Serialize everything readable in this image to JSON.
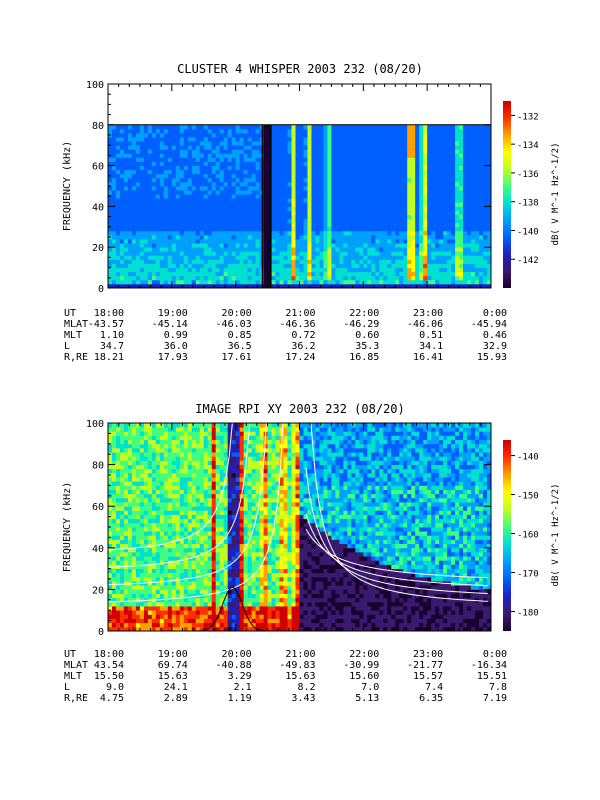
{
  "colors": {
    "text": "#000000",
    "curve_white": "#ffffff",
    "curve_black": "#000000",
    "colormap": [
      "#1a0030",
      "#3a1a6e",
      "#2020c0",
      "#0060ff",
      "#00a0ff",
      "#00e0d0",
      "#40ff80",
      "#c0ff20",
      "#ffff00",
      "#ffa000",
      "#ff3000",
      "#d00000"
    ]
  },
  "chart_data": [
    {
      "type": "heatmap",
      "title": "CLUSTER 4 WHISPER 2003 232 (08/20)",
      "ylabel": "FREQUENCY (kHz)",
      "ylim": [
        0,
        100
      ],
      "yticks": [
        "0",
        "20",
        "40",
        "60",
        "80",
        "100"
      ],
      "xlim_hours": [
        18,
        24
      ],
      "xticks": [
        "18:00",
        "19:00",
        "20:00",
        "21:00",
        "22:00",
        "23:00",
        "0:00"
      ],
      "data_top_khz": 80,
      "colorbar": {
        "label": "dB( V M⁻¹ Hz⁻¹ᐟ²)",
        "label_text": "dB( V M^-1 Hz^-1/2)",
        "ticks": [
          "-132",
          "-134",
          "-136",
          "-138",
          "-140",
          "-142"
        ],
        "range": [
          -144,
          -131
        ]
      },
      "features": {
        "gap_hours": [
          20.42,
          20.55
        ],
        "bursts": [
          {
            "t": 20.9,
            "level": 0.55
          },
          {
            "t": 21.15,
            "level": 0.5
          },
          {
            "t": 21.45,
            "level": 0.45
          },
          {
            "t": 22.75,
            "level": 0.9
          },
          {
            "t": 22.95,
            "level": 0.75
          },
          {
            "t": 23.5,
            "level": 0.55
          }
        ]
      },
      "info_rows": [
        {
          "label": "UT",
          "values": [
            "18:00",
            "19:00",
            "20:00",
            "21:00",
            "22:00",
            "23:00",
            "0:00"
          ]
        },
        {
          "label": "MLAT",
          "values": [
            "-43.57",
            "-45.14",
            "-46.03",
            "-46.36",
            "-46.29",
            "-46.06",
            "-45.94"
          ]
        },
        {
          "label": "MLT",
          "values": [
            "1.10",
            "0.99",
            "0.85",
            "0.72",
            "0.60",
            "0.51",
            "0.46"
          ]
        },
        {
          "label": "L",
          "values": [
            "34.7",
            "36.0",
            "36.5",
            "36.2",
            "35.3",
            "34.1",
            "32.9"
          ]
        },
        {
          "label": "R,RE",
          "values": [
            "18.21",
            "17.93",
            "17.61",
            "17.24",
            "16.85",
            "16.41",
            "15.93"
          ]
        }
      ]
    },
    {
      "type": "heatmap",
      "title": "IMAGE RPI XY 2003 232 (08/20)",
      "ylabel": "FREQUENCY (kHz)",
      "ylim": [
        0,
        100
      ],
      "yticks": [
        "0",
        "20",
        "40",
        "60",
        "80",
        "100"
      ],
      "xlim_hours": [
        18,
        24
      ],
      "xticks": [
        "18:00",
        "19:00",
        "20:00",
        "21:00",
        "22:00",
        "23:00",
        "0:00"
      ],
      "colorbar": {
        "label_text": "dB( V M^-1 Hz^-1/2)",
        "ticks": [
          "-140",
          "-150",
          "-160",
          "-170",
          "-180"
        ],
        "range": [
          -185,
          -136
        ]
      },
      "features": {
        "hot_columns": [
          19.65,
          19.95,
          20.1,
          20.45,
          20.75,
          20.95,
          21.05,
          22.75
        ],
        "dark_region_start": 21.0
      },
      "curves_note_hidden": true,
      "info_rows": [
        {
          "label": "UT",
          "values": [
            "18:00",
            "19:00",
            "20:00",
            "21:00",
            "22:00",
            "23:00",
            "0:00"
          ]
        },
        {
          "label": "MLAT",
          "values": [
            "43.54",
            "69.74",
            "-40.88",
            "-49.83",
            "-30.99",
            "-21.77",
            "-16.34"
          ]
        },
        {
          "label": "MLT",
          "values": [
            "15.50",
            "15.63",
            "3.29",
            "15.63",
            "15.60",
            "15.57",
            "15.51"
          ]
        },
        {
          "label": "L",
          "values": [
            "9.0",
            "24.1",
            "2.1",
            "8.2",
            "7.0",
            "7.4",
            "7.8"
          ]
        },
        {
          "label": "R,RE",
          "values": [
            "4.75",
            "2.89",
            "1.19",
            "3.43",
            "5.13",
            "6.35",
            "7.19"
          ]
        }
      ]
    }
  ]
}
